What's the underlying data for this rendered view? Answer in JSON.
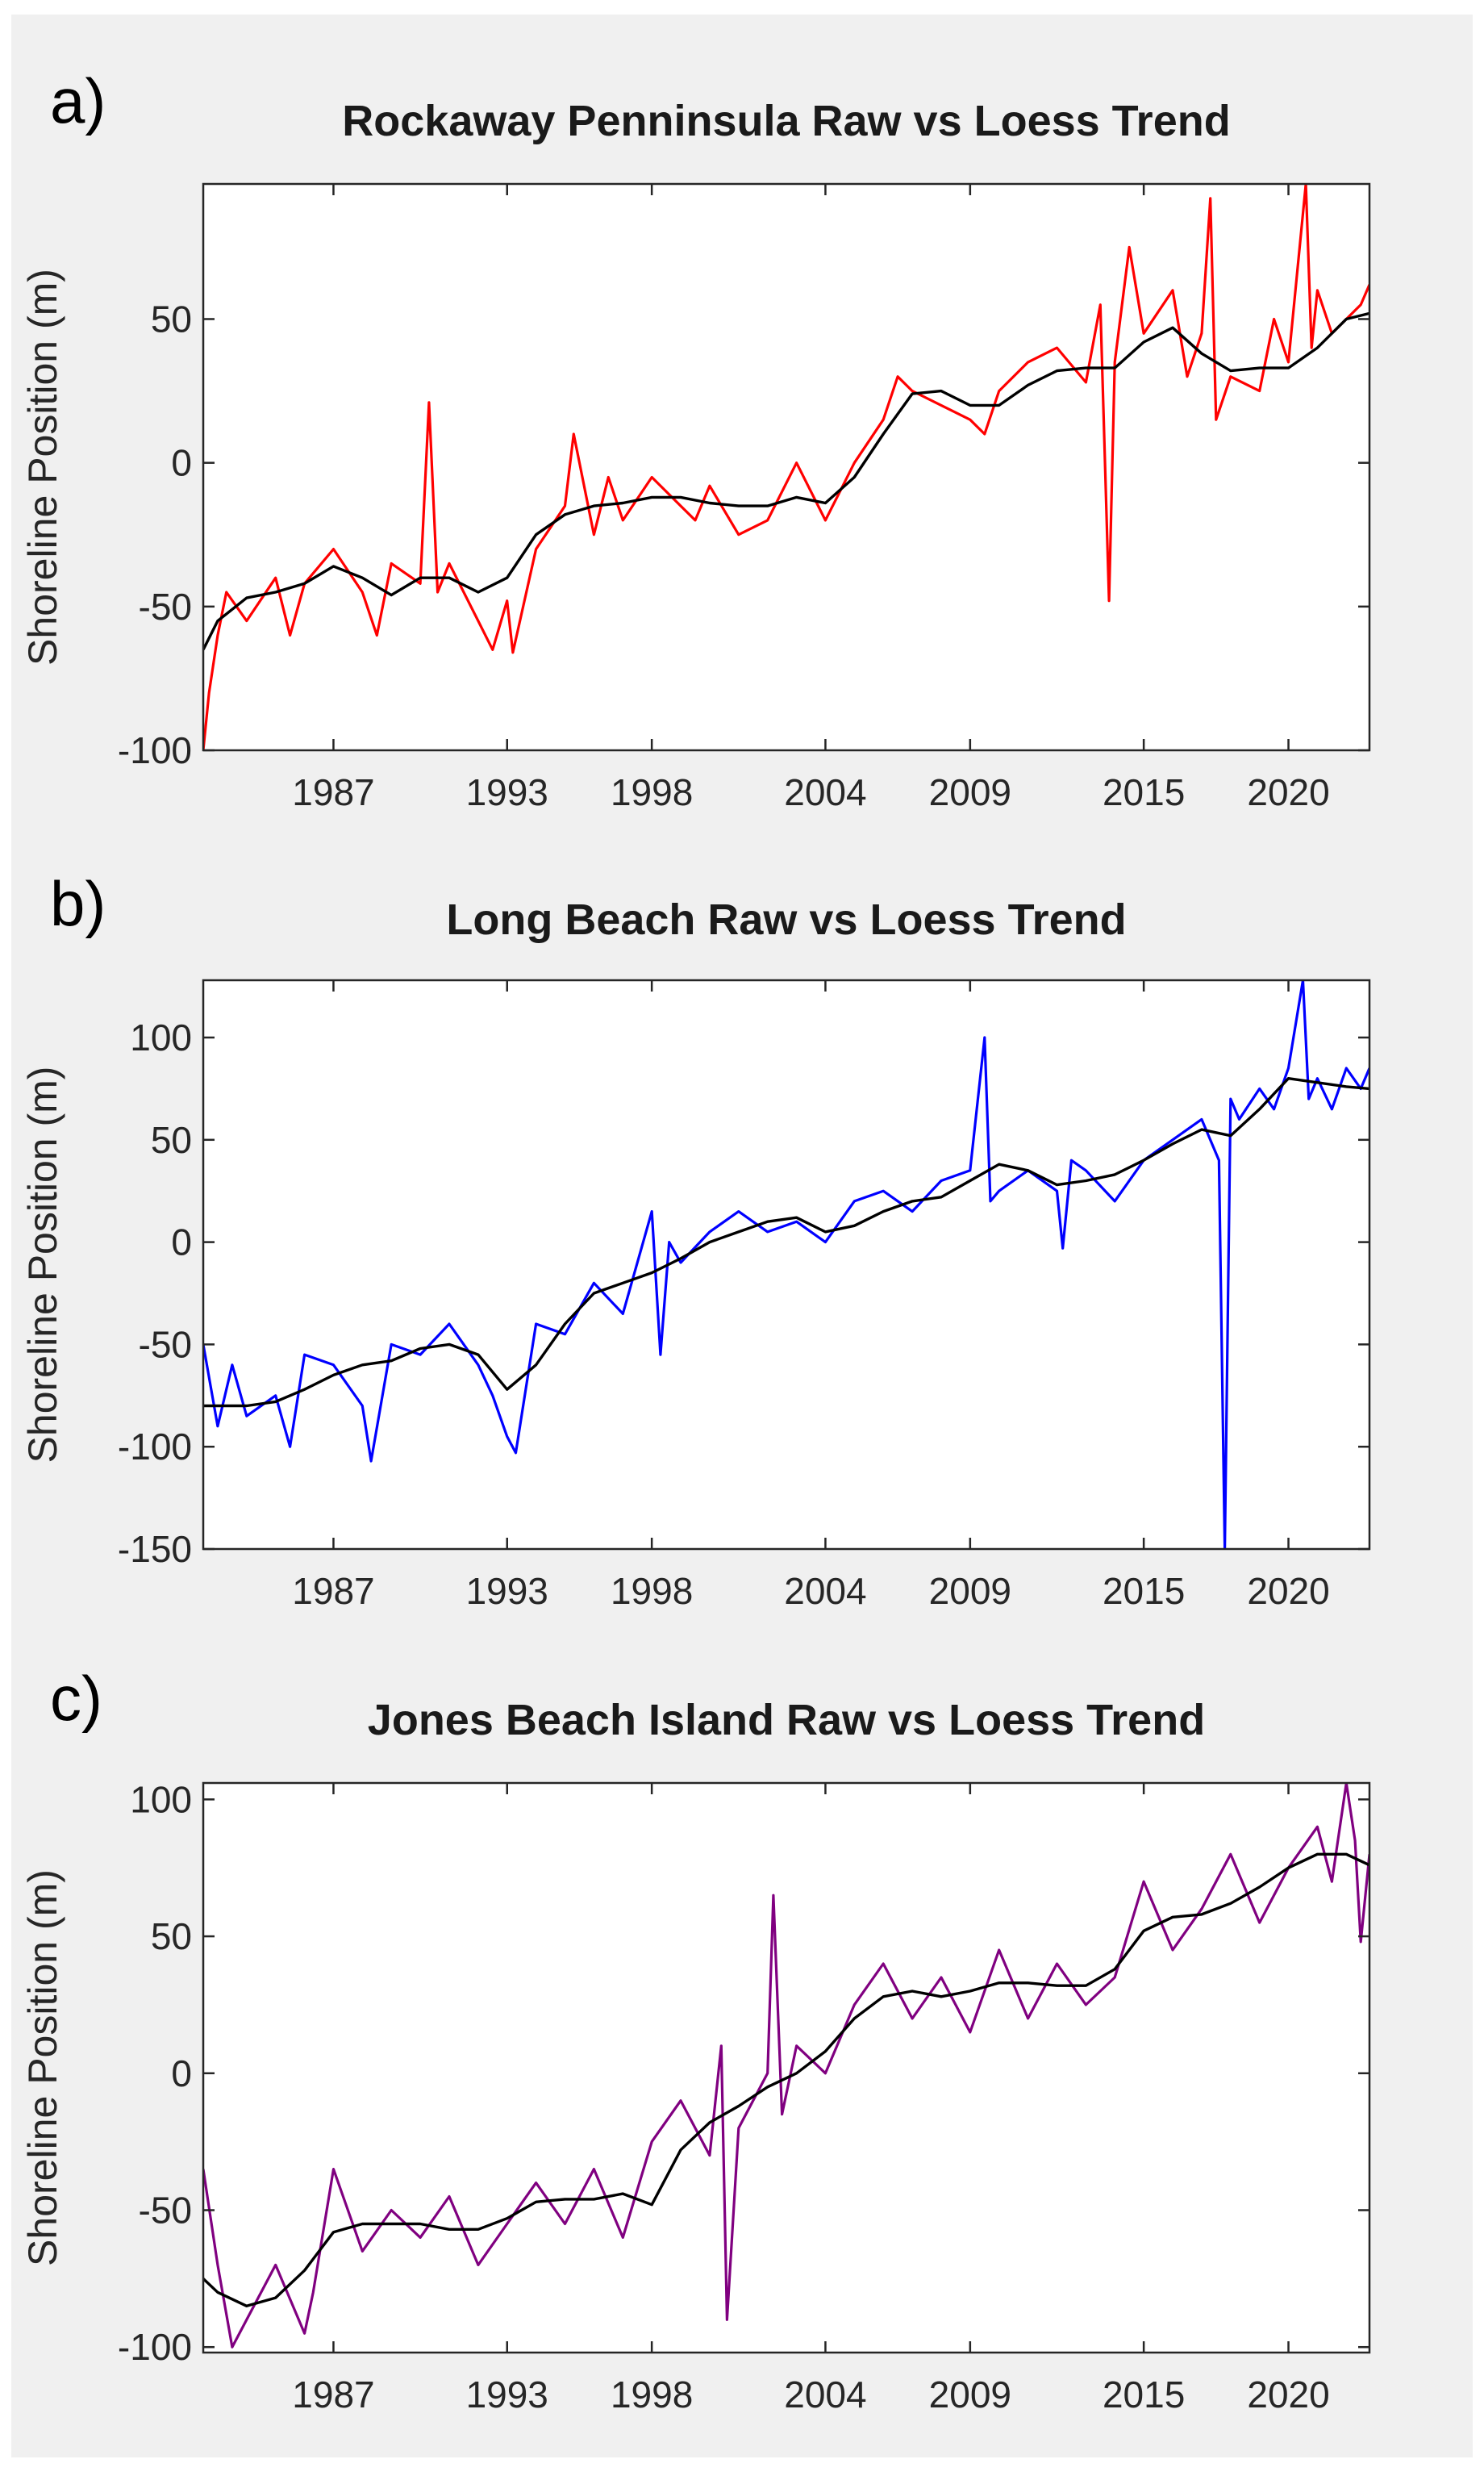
{
  "figure": {
    "panel_letters": [
      "a)",
      "b)",
      "c)"
    ]
  },
  "chart_data": [
    {
      "type": "line",
      "panel": "a)",
      "title": "Rockaway Penninsula Raw vs Loess Trend",
      "xlabel": "",
      "ylabel": "Shoreline Position (m)",
      "xlim": [
        1982.5,
        2022.8
      ],
      "ylim": [
        -100,
        97
      ],
      "xticks": [
        1987,
        1993,
        1998,
        2004,
        2009,
        2015,
        2020
      ],
      "yticks": [
        -100,
        -50,
        0,
        50
      ],
      "grid": false,
      "raw_color": "#ff0000",
      "trend_color": "#000000",
      "trend": {
        "name": "Loess Trend",
        "x": [
          1982.5,
          1983,
          1984,
          1985,
          1986,
          1987,
          1988,
          1989,
          1990,
          1991,
          1992,
          1993,
          1994,
          1995,
          1996,
          1997,
          1998,
          1999,
          2000,
          2001,
          2002,
          2003,
          2004,
          2005,
          2006,
          2007,
          2008,
          2009,
          2010,
          2011,
          2012,
          2013,
          2014,
          2015,
          2016,
          2017,
          2018,
          2019,
          2020,
          2021,
          2022,
          2022.8
        ],
        "y": [
          -65,
          -55,
          -47,
          -45,
          -42,
          -36,
          -40,
          -46,
          -40,
          -40,
          -45,
          -40,
          -25,
          -18,
          -15,
          -14,
          -12,
          -12,
          -14,
          -15,
          -15,
          -12,
          -14,
          -5,
          10,
          24,
          25,
          20,
          20,
          27,
          32,
          33,
          33,
          42,
          47,
          38,
          32,
          33,
          33,
          40,
          50,
          52
        ]
      },
      "raw": {
        "name": "Raw",
        "x": [
          1982.5,
          1982.7,
          1983,
          1983.3,
          1984,
          1985,
          1985.5,
          1986,
          1987,
          1988,
          1988.5,
          1989,
          1990,
          1990.3,
          1990.6,
          1991,
          1992,
          1992.5,
          1993,
          1993.2,
          1994,
          1995,
          1995.3,
          1996,
          1996.5,
          1997,
          1998,
          1999,
          1999.5,
          2000,
          2001,
          2002,
          2003,
          2004,
          2004.5,
          2005,
          2006,
          2006.5,
          2007,
          2008,
          2009,
          2009.5,
          2010,
          2011,
          2012,
          2013,
          2013.5,
          2013.8,
          2014,
          2014.5,
          2015,
          2016,
          2016.5,
          2017,
          2017.3,
          2017.5,
          2018,
          2019,
          2019.5,
          2020,
          2020.6,
          2020.8,
          2021,
          2021.5,
          2022,
          2022.5,
          2022.8
        ],
        "y": [
          -100,
          -80,
          -60,
          -45,
          -55,
          -40,
          -60,
          -42,
          -30,
          -45,
          -60,
          -35,
          -42,
          21,
          -45,
          -35,
          -55,
          -65,
          -48,
          -66,
          -30,
          -15,
          10,
          -25,
          -5,
          -20,
          -5,
          -15,
          -20,
          -8,
          -25,
          -20,
          0,
          -20,
          -10,
          0,
          15,
          30,
          25,
          20,
          15,
          10,
          25,
          35,
          40,
          28,
          55,
          -48,
          35,
          75,
          45,
          60,
          30,
          45,
          92,
          15,
          30,
          25,
          50,
          35,
          97,
          40,
          60,
          45,
          50,
          55,
          62
        ]
      }
    },
    {
      "type": "line",
      "panel": "b)",
      "title": "Long Beach Raw vs Loess Trend",
      "xlabel": "",
      "ylabel": "Shoreline Position (m)",
      "xlim": [
        1982.5,
        2022.8
      ],
      "ylim": [
        -150,
        128
      ],
      "xticks": [
        1987,
        1993,
        1998,
        2004,
        2009,
        2015,
        2020
      ],
      "yticks": [
        -150,
        -100,
        -50,
        0,
        50,
        100
      ],
      "grid": false,
      "raw_color": "#0000ff",
      "trend_color": "#000000",
      "trend": {
        "name": "Loess Trend",
        "x": [
          1982.5,
          1983,
          1984,
          1985,
          1986,
          1987,
          1988,
          1989,
          1990,
          1991,
          1992,
          1993,
          1994,
          1995,
          1996,
          1997,
          1998,
          1999,
          2000,
          2001,
          2002,
          2003,
          2004,
          2005,
          2006,
          2007,
          2008,
          2009,
          2010,
          2011,
          2012,
          2013,
          2014,
          2015,
          2016,
          2017,
          2018,
          2019,
          2020,
          2021,
          2022,
          2022.8
        ],
        "y": [
          -80,
          -80,
          -80,
          -78,
          -72,
          -65,
          -60,
          -58,
          -52,
          -50,
          -55,
          -72,
          -60,
          -40,
          -25,
          -20,
          -15,
          -8,
          0,
          5,
          10,
          12,
          5,
          8,
          15,
          20,
          22,
          30,
          38,
          35,
          28,
          30,
          33,
          40,
          48,
          55,
          52,
          65,
          80,
          78,
          76,
          75
        ]
      },
      "raw": {
        "name": "Raw",
        "x": [
          1982.5,
          1983,
          1983.5,
          1984,
          1985,
          1985.5,
          1986,
          1987,
          1988,
          1988.3,
          1989,
          1990,
          1991,
          1992,
          1992.5,
          1993,
          1993.3,
          1994,
          1995,
          1996,
          1997,
          1998,
          1998.3,
          1998.6,
          1999,
          2000,
          2001,
          2002,
          2003,
          2004,
          2005,
          2006,
          2007,
          2008,
          2009,
          2009.5,
          2009.7,
          2010,
          2011,
          2012,
          2012.2,
          2012.5,
          2013,
          2014,
          2015,
          2016,
          2017,
          2017.6,
          2017.8,
          2018,
          2018.3,
          2019,
          2019.5,
          2020,
          2020.5,
          2020.7,
          2021,
          2021.5,
          2022,
          2022.5,
          2022.8
        ],
        "y": [
          -50,
          -90,
          -60,
          -85,
          -75,
          -100,
          -55,
          -60,
          -80,
          -107,
          -50,
          -55,
          -40,
          -60,
          -75,
          -95,
          -103,
          -40,
          -45,
          -20,
          -35,
          15,
          -55,
          0,
          -10,
          5,
          15,
          5,
          10,
          0,
          20,
          25,
          15,
          30,
          35,
          100,
          20,
          25,
          35,
          25,
          -3,
          40,
          35,
          20,
          40,
          50,
          60,
          40,
          -150,
          70,
          60,
          75,
          65,
          85,
          128,
          70,
          80,
          65,
          85,
          75,
          85
        ]
      }
    },
    {
      "type": "line",
      "panel": "c)",
      "title": "Jones Beach Island Raw vs Loess Trend",
      "xlabel": "",
      "ylabel": "Shoreline Position (m)",
      "xlim": [
        1982.5,
        2022.8
      ],
      "ylim": [
        -102,
        106
      ],
      "xticks": [
        1987,
        1993,
        1998,
        2004,
        2009,
        2015,
        2020
      ],
      "yticks": [
        -100,
        -50,
        0,
        50,
        100
      ],
      "grid": false,
      "raw_color": "#800080",
      "trend_color": "#000000",
      "trend": {
        "name": "Loess Trend",
        "x": [
          1982.5,
          1983,
          1984,
          1985,
          1986,
          1987,
          1988,
          1989,
          1990,
          1991,
          1992,
          1993,
          1994,
          1995,
          1996,
          1997,
          1998,
          1999,
          2000,
          2001,
          2002,
          2003,
          2004,
          2005,
          2006,
          2007,
          2008,
          2009,
          2010,
          2011,
          2012,
          2013,
          2014,
          2015,
          2016,
          2017,
          2018,
          2019,
          2020,
          2021,
          2022,
          2022.8
        ],
        "y": [
          -75,
          -80,
          -85,
          -82,
          -72,
          -58,
          -55,
          -55,
          -55,
          -57,
          -57,
          -53,
          -47,
          -46,
          -46,
          -44,
          -48,
          -28,
          -18,
          -12,
          -5,
          0,
          8,
          20,
          28,
          30,
          28,
          30,
          33,
          33,
          32,
          32,
          38,
          52,
          57,
          58,
          62,
          68,
          75,
          80,
          80,
          76
        ]
      },
      "raw": {
        "name": "Raw",
        "x": [
          1982.5,
          1983,
          1983.5,
          1984,
          1985,
          1986,
          1986.3,
          1987,
          1988,
          1989,
          1990,
          1991,
          1992,
          1993,
          1994,
          1995,
          1996,
          1997,
          1998,
          1999,
          2000,
          2000.4,
          2000.6,
          2001,
          2002,
          2002.2,
          2002.5,
          2003,
          2004,
          2005,
          2006,
          2007,
          2008,
          2009,
          2010,
          2011,
          2012,
          2013,
          2014,
          2015,
          2016,
          2017,
          2018,
          2019,
          2020,
          2021,
          2021.5,
          2022,
          2022.3,
          2022.5,
          2022.8
        ],
        "y": [
          -35,
          -70,
          -100,
          -90,
          -70,
          -95,
          -80,
          -35,
          -65,
          -50,
          -60,
          -45,
          -70,
          -55,
          -40,
          -55,
          -35,
          -60,
          -25,
          -10,
          -30,
          10,
          -90,
          -20,
          0,
          65,
          -15,
          10,
          0,
          25,
          40,
          20,
          35,
          15,
          45,
          20,
          40,
          25,
          35,
          70,
          45,
          60,
          80,
          55,
          75,
          90,
          70,
          106,
          85,
          48,
          80
        ]
      }
    }
  ]
}
